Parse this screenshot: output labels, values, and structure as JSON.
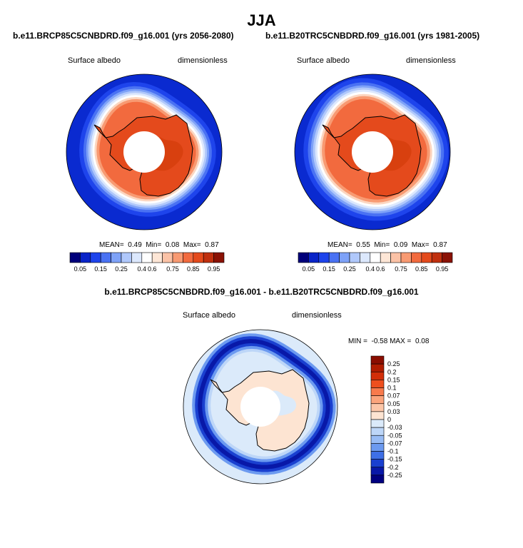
{
  "page_title": "JJA",
  "panels": [
    {
      "case": "b.e11.BRCP85C5CNBDRD.f09_g16.001 (yrs 2056-2080)",
      "variable": "Surface albedo",
      "units": "dimensionless",
      "stats": {
        "mean_label": "MEAN=",
        "mean": "0.49",
        "min_label": "Min=",
        "min": "0.08",
        "max_label": "Max=",
        "max": "0.87"
      }
    },
    {
      "case": "b.e11.B20TRC5CNBDRD.f09_g16.001 (yrs 1981-2005)",
      "variable": "Surface albedo",
      "units": "dimensionless",
      "stats": {
        "mean_label": "MEAN=",
        "mean": "0.55",
        "min_label": "Min=",
        "min": "0.09",
        "max_label": "Max=",
        "max": "0.87"
      }
    }
  ],
  "difference": {
    "title": "b.e11.BRCP85C5CNBDRD.f09_g16.001 - b.e11.B20TRC5CNBDRD.f09_g16.001",
    "variable": "Surface albedo",
    "units": "dimensionless",
    "stats": {
      "min_label": "MIN =",
      "min": "-0.58",
      "max_label": "MAX =",
      "max": "0.08"
    }
  },
  "chart_data": [
    {
      "type": "heatmap",
      "title": "b.e11.BRCP85C5CNBDRD.f09_g16.001 (yrs 2056-2080)",
      "projection": "south polar stereographic",
      "variable": "Surface albedo",
      "mean": 0.49,
      "min": 0.08,
      "max": 0.87,
      "colorbar": {
        "orientation": "horizontal",
        "ticks": [
          "0.05",
          "0.15",
          "0.25",
          "0.4",
          "0.6",
          "0.75",
          "0.85",
          "0.95"
        ],
        "colors": [
          "#00007a",
          "#0a24c8",
          "#1e44ec",
          "#4a72f3",
          "#7ea2f8",
          "#b0c8fb",
          "#dce8fd",
          "#ffffff",
          "#fde6d6",
          "#fbc2a6",
          "#f89a72",
          "#f26a3e",
          "#e44a1c",
          "#c0300f",
          "#8a1205"
        ]
      },
      "regions": [
        "open ocean low albedo",
        "sea-ice edge transition",
        "sea ice high albedo",
        "Antarctic continent high albedo",
        "polar missing-data hole"
      ]
    },
    {
      "type": "heatmap",
      "title": "b.e11.B20TRC5CNBDRD.f09_g16.001 (yrs 1981-2005)",
      "projection": "south polar stereographic",
      "variable": "Surface albedo",
      "mean": 0.55,
      "min": 0.09,
      "max": 0.87,
      "colorbar": {
        "orientation": "horizontal",
        "ticks": [
          "0.05",
          "0.15",
          "0.25",
          "0.4",
          "0.6",
          "0.75",
          "0.85",
          "0.95"
        ],
        "colors": [
          "#00007a",
          "#0a24c8",
          "#1e44ec",
          "#4a72f3",
          "#7ea2f8",
          "#b0c8fb",
          "#dce8fd",
          "#ffffff",
          "#fde6d6",
          "#fbc2a6",
          "#f89a72",
          "#f26a3e",
          "#e44a1c",
          "#c0300f",
          "#8a1205"
        ]
      },
      "regions": [
        "open ocean low albedo",
        "sea-ice edge transition",
        "sea ice high albedo",
        "Antarctic continent high albedo",
        "polar missing-data hole"
      ]
    },
    {
      "type": "heatmap",
      "title": "b.e11.BRCP85C5CNBDRD.f09_g16.001 - b.e11.B20TRC5CNBDRD.f09_g16.001",
      "projection": "south polar stereographic",
      "variable": "Surface albedo difference",
      "min": -0.58,
      "max": 0.08,
      "colorbar": {
        "orientation": "vertical",
        "ticks": [
          "0.25",
          "0.2",
          "0.15",
          "0.1",
          "0.07",
          "0.05",
          "0.03",
          "0",
          "-0.03",
          "-0.05",
          "-0.07",
          "-0.1",
          "-0.15",
          "-0.2",
          "-0.25"
        ],
        "colors": [
          "#8a0d00",
          "#b01c00",
          "#d22e08",
          "#ee4f1e",
          "#f87a4c",
          "#fba47c",
          "#fcc6a8",
          "#fde4d2",
          "#dbeafa",
          "#bdd6f8",
          "#98bcf5",
          "#6c9af0",
          "#3e6fe6",
          "#1a40d0",
          "#0818a8",
          "#000080"
        ]
      },
      "regions": [
        "strong negative ring along the ice edge",
        "small positive and negative changes elsewhere",
        "polar missing-data hole"
      ]
    }
  ]
}
